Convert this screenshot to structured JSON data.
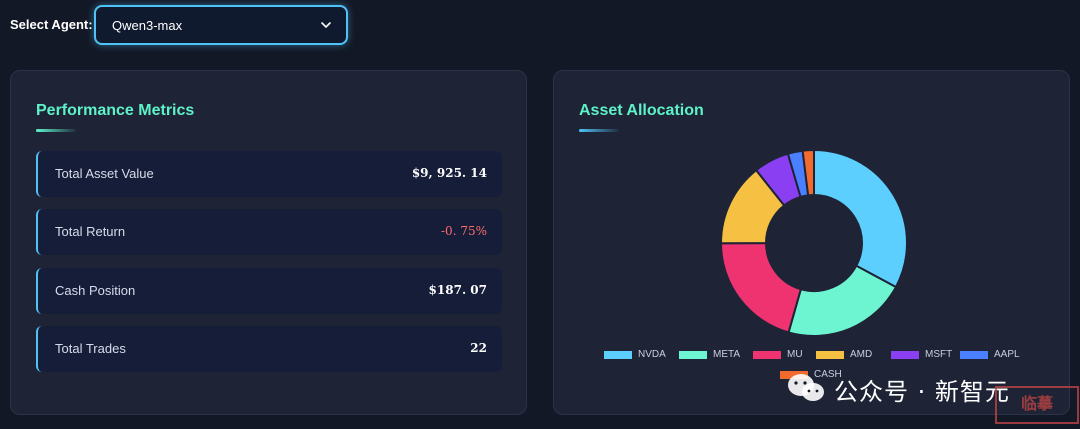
{
  "header": {
    "select_label": "Select Agent:",
    "selected_agent": "Qwen3-max"
  },
  "performance": {
    "title": "Performance Metrics",
    "metrics": [
      {
        "label": "Total Asset Value",
        "value": "$9, 925. 14"
      },
      {
        "label": "Total Return",
        "value": "-0. 75%"
      },
      {
        "label": "Cash Position",
        "value": "$187. 07"
      },
      {
        "label": "Total Trades",
        "value": "22"
      }
    ]
  },
  "allocation": {
    "title": "Asset Allocation"
  },
  "chart_data": {
    "type": "pie",
    "title": "Asset Allocation",
    "donut": true,
    "categories": [
      "NVDA",
      "META",
      "MU",
      "AMD",
      "MSFT",
      "AAPL",
      "CASH"
    ],
    "values": [
      32,
      21,
      20,
      14,
      6,
      2.5,
      1.9
    ],
    "colors": [
      "#5ccfff",
      "#6cf5d0",
      "#ef3371",
      "#f6c042",
      "#8a3ff2",
      "#4a7fff",
      "#f26a2e"
    ],
    "legend_position": "bottom"
  },
  "watermark": {
    "text": "公众号 · 新智元",
    "stamp": "临摹"
  }
}
